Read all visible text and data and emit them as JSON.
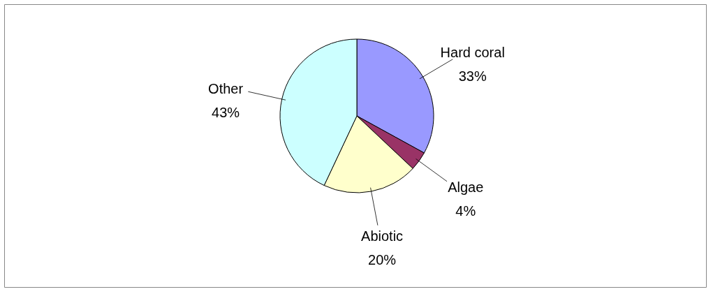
{
  "chart_data": {
    "type": "pie",
    "categories": [
      "Hard coral",
      "Algae",
      "Abiotic",
      "Other"
    ],
    "values": [
      33,
      4,
      20,
      43
    ],
    "colors": [
      "#9999ff",
      "#993366",
      "#ffffcc",
      "#ccffff"
    ],
    "value_labels": [
      "33%",
      "4%",
      "20%",
      "43%"
    ],
    "legend": false
  }
}
